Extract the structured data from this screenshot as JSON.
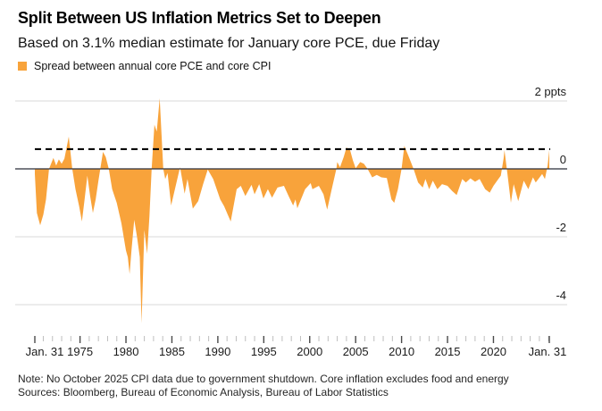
{
  "header": {
    "title": "Split Between US Inflation Metrics Set to Deepen",
    "subtitle": "Based on 3.1% median estimate for January core PCE, due Friday",
    "legend": {
      "label": "Spread between annual core PCE and core CPI"
    }
  },
  "footer": {
    "note": "Note: No October 2025 CPI data due to government shutdown. Core inflation excludes food and energy",
    "sources": "Sources: Bloomberg, Bureau of Economic Analysis, Bureau of Labor Statistics"
  },
  "colors": {
    "accent_orange": "#F8A33B",
    "grid_line": "#D9D9D9",
    "zero_line": "#2A2E39",
    "estimate_line": "#000000",
    "tick_major": "#4A4A4A",
    "tick_minor": "#BEBEBE",
    "axis_text": "#1B1B1B"
  },
  "chart_data": {
    "type": "area",
    "title": "Split Between US Inflation Metrics Set to Deepen",
    "subtitle": "Based on 3.1% median estimate for January core PCE, due Friday",
    "unit": "ppts",
    "xlabel": "",
    "ylabel": "2 ppts",
    "x_range": [
      1970.08,
      2026.08
    ],
    "ylim": [
      -4.9,
      2.2
    ],
    "grid": true,
    "legend_position": "top-left",
    "y_ticks": [
      {
        "label": "2 ppts",
        "value": 2
      },
      {
        "label": "0",
        "value": 0
      },
      {
        "label": "-2",
        "value": -2
      },
      {
        "label": "-4",
        "value": -4
      }
    ],
    "x_major_ticks": [
      {
        "label": "Jan. 31",
        "year": 1970.08,
        "dx": 11
      },
      {
        "label": "1975",
        "year": 1975,
        "dx": 0
      },
      {
        "label": "1980",
        "year": 1980,
        "dx": 0
      },
      {
        "label": "1985",
        "year": 1985,
        "dx": 0
      },
      {
        "label": "1990",
        "year": 1990,
        "dx": 0
      },
      {
        "label": "1995",
        "year": 1995,
        "dx": 0
      },
      {
        "label": "2000",
        "year": 2000,
        "dx": 0
      },
      {
        "label": "2005",
        "year": 2005,
        "dx": 0
      },
      {
        "label": "2010",
        "year": 2010,
        "dx": 0
      },
      {
        "label": "2015",
        "year": 2015,
        "dx": 0
      },
      {
        "label": "2020",
        "year": 2020,
        "dx": 0
      },
      {
        "label": "Jan. 31",
        "year": 2026.08,
        "dx": -2
      }
    ],
    "estimate_line": {
      "value": 0.58,
      "style": "dashed",
      "meaning": "implied spread from 3.1% January core PCE estimate"
    },
    "series": [
      {
        "name": "Spread between annual core PCE and core CPI",
        "color": "#F8A33B",
        "points": [
          [
            1970.08,
            -0.15
          ],
          [
            1970.3,
            -1.3
          ],
          [
            1970.66,
            -1.66
          ],
          [
            1971.0,
            -1.35
          ],
          [
            1971.3,
            -0.9
          ],
          [
            1971.63,
            0.0
          ],
          [
            1972.1,
            0.32
          ],
          [
            1972.4,
            0.1
          ],
          [
            1972.7,
            0.28
          ],
          [
            1973.0,
            0.15
          ],
          [
            1973.3,
            0.3
          ],
          [
            1973.77,
            0.95
          ],
          [
            1974.15,
            0.0
          ],
          [
            1974.5,
            -0.6
          ],
          [
            1974.9,
            -1.1
          ],
          [
            1975.2,
            -1.55
          ],
          [
            1975.5,
            -0.9
          ],
          [
            1975.8,
            -0.2
          ],
          [
            1976.1,
            -0.8
          ],
          [
            1976.4,
            -1.3
          ],
          [
            1976.7,
            -0.9
          ],
          [
            1977.0,
            -0.35
          ],
          [
            1977.5,
            0.5
          ],
          [
            1977.8,
            0.35
          ],
          [
            1978.13,
            0.0
          ],
          [
            1978.5,
            -0.6
          ],
          [
            1979.0,
            -1.0
          ],
          [
            1979.5,
            -1.6
          ],
          [
            1980.0,
            -2.4
          ],
          [
            1980.2,
            -2.6
          ],
          [
            1980.4,
            -3.1
          ],
          [
            1980.6,
            -2.4
          ],
          [
            1980.9,
            -1.5
          ],
          [
            1981.2,
            -2.0
          ],
          [
            1981.5,
            -2.6
          ],
          [
            1981.7,
            -4.55
          ],
          [
            1982.0,
            -1.8
          ],
          [
            1982.3,
            -2.5
          ],
          [
            1982.55,
            -1.4
          ],
          [
            1982.8,
            0.0
          ],
          [
            1983.1,
            1.3
          ],
          [
            1983.35,
            1.1
          ],
          [
            1983.67,
            2.08
          ],
          [
            1984.06,
            0.0
          ],
          [
            1984.27,
            -0.3
          ],
          [
            1984.53,
            -0.12
          ],
          [
            1984.92,
            -1.08
          ],
          [
            1985.2,
            -0.75
          ],
          [
            1985.89,
            0.05
          ],
          [
            1986.38,
            -0.73
          ],
          [
            1986.7,
            -0.3
          ],
          [
            1987.28,
            -1.17
          ],
          [
            1987.86,
            -0.95
          ],
          [
            1988.4,
            -0.45
          ],
          [
            1988.9,
            -0.02
          ],
          [
            1989.5,
            -0.3
          ],
          [
            1990.26,
            -0.9
          ],
          [
            1990.68,
            -1.1
          ],
          [
            1991.4,
            -1.55
          ],
          [
            1992.05,
            -0.6
          ],
          [
            1992.5,
            -0.5
          ],
          [
            1993.0,
            -0.8
          ],
          [
            1993.67,
            -0.47
          ],
          [
            1994.0,
            -0.75
          ],
          [
            1994.5,
            -0.45
          ],
          [
            1994.96,
            -0.87
          ],
          [
            1995.45,
            -0.6
          ],
          [
            1995.9,
            -0.85
          ],
          [
            1996.5,
            -0.55
          ],
          [
            1997.2,
            -0.5
          ],
          [
            1997.7,
            -0.8
          ],
          [
            1998.2,
            -1.08
          ],
          [
            1998.45,
            -0.9
          ],
          [
            1998.65,
            -1.16
          ],
          [
            1999.5,
            -0.6
          ],
          [
            2000.1,
            -0.42
          ],
          [
            2000.3,
            -0.6
          ],
          [
            2001.0,
            -0.5
          ],
          [
            2001.5,
            -0.75
          ],
          [
            2001.9,
            -1.2
          ],
          [
            2002.4,
            -0.6
          ],
          [
            2002.9,
            0.0
          ],
          [
            2003.0,
            0.2
          ],
          [
            2003.3,
            0.05
          ],
          [
            2003.7,
            0.35
          ],
          [
            2004.0,
            0.63
          ],
          [
            2004.4,
            0.55
          ],
          [
            2004.7,
            0.25
          ],
          [
            2005.0,
            0.02
          ],
          [
            2005.5,
            0.2
          ],
          [
            2005.9,
            0.15
          ],
          [
            2006.3,
            0.0
          ],
          [
            2006.8,
            -0.25
          ],
          [
            2007.3,
            -0.18
          ],
          [
            2007.8,
            -0.25
          ],
          [
            2008.4,
            -0.27
          ],
          [
            2008.9,
            -0.9
          ],
          [
            2009.2,
            -1.0
          ],
          [
            2009.6,
            -0.6
          ],
          [
            2010.0,
            0.0
          ],
          [
            2010.3,
            0.68
          ],
          [
            2010.8,
            0.35
          ],
          [
            2011.3,
            0.0
          ],
          [
            2011.8,
            -0.4
          ],
          [
            2012.3,
            -0.55
          ],
          [
            2012.6,
            -0.3
          ],
          [
            2013.0,
            -0.6
          ],
          [
            2013.4,
            -0.35
          ],
          [
            2013.9,
            -0.6
          ],
          [
            2014.4,
            -0.45
          ],
          [
            2015.0,
            -0.5
          ],
          [
            2015.5,
            -0.65
          ],
          [
            2016.0,
            -0.77
          ],
          [
            2016.6,
            -0.3
          ],
          [
            2017.0,
            -0.4
          ],
          [
            2017.5,
            -0.28
          ],
          [
            2018.0,
            -0.38
          ],
          [
            2018.5,
            -0.3
          ],
          [
            2019.1,
            -0.6
          ],
          [
            2019.6,
            -0.7
          ],
          [
            2020.0,
            -0.5
          ],
          [
            2020.4,
            -0.35
          ],
          [
            2020.8,
            -0.2
          ],
          [
            2021.1,
            0.3
          ],
          [
            2021.2,
            0.55
          ],
          [
            2021.5,
            -0.1
          ],
          [
            2021.9,
            -1.0
          ],
          [
            2022.2,
            -0.45
          ],
          [
            2022.7,
            -0.95
          ],
          [
            2023.3,
            -0.35
          ],
          [
            2023.8,
            -0.6
          ],
          [
            2024.3,
            -0.25
          ],
          [
            2024.6,
            -0.4
          ],
          [
            2025.3,
            -0.15
          ],
          [
            2025.6,
            -0.3
          ],
          [
            2025.9,
            0.1
          ],
          [
            2026.08,
            0.55
          ]
        ]
      }
    ]
  }
}
